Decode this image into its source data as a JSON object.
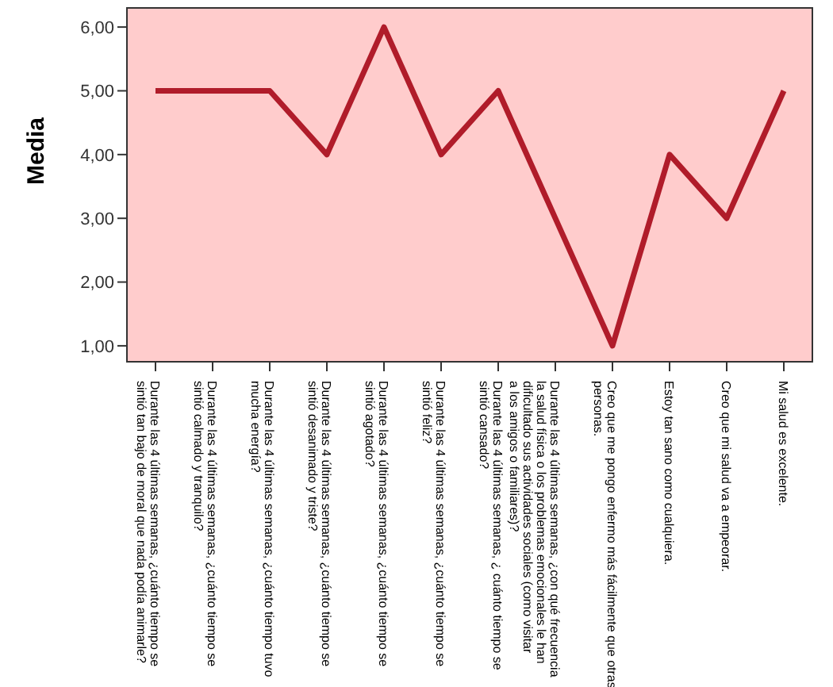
{
  "chart_data": {
    "type": "line",
    "ylabel": "Media",
    "categories": [
      "Durante las 4 últimas semanas, ¿cuánto tiempo se sintió tan bajo de moral que nada podía animarle?",
      "Durante las 4 últimas semanas, ¿cuánto tiempo se sintió calmado y tranquilo?",
      "Durante las 4 últimas semanas, ¿cuánto tiempo tuvo mucha energía?",
      "Durante las 4 últimas semanas, ¿cuánto tiempo se sintió desanimado y triste?",
      "Durante las 4 últimas semanas, ¿cuánto tiempo se sintió agotado?",
      "Durante las 4 últimas semanas, ¿cuánto tiempo se sintió feliz?",
      "Durante las 4 últimas semanas, ¿ cuánto tiempo se sintió cansado?",
      "Durante las 4 últimas semanas, ¿con qué frecuencia la salud física o los problemas emocionales le han dificultado sus actividades sociales (como visitar a los amigos o familiares)?",
      "Creo que me pongo enfermo más fácilmente que otras personas.",
      "Estoy tan sano como cualquiera.",
      "Creo que mi salud va a empeorar.",
      "Mi salud es excelente."
    ],
    "series": [
      {
        "color": "#b01c2a",
        "values": [
          5,
          5,
          5,
          4,
          6,
          4,
          5,
          3,
          1,
          4,
          3,
          5
        ]
      }
    ],
    "ylim": [
      0.75,
      6.3
    ],
    "yticks": [
      {
        "value": 1,
        "label": "1,00"
      },
      {
        "value": 2,
        "label": "2,00"
      },
      {
        "value": 3,
        "label": "3,00"
      },
      {
        "value": 4,
        "label": "4,00"
      },
      {
        "value": 5,
        "label": "5,00"
      },
      {
        "value": 6,
        "label": "6,00"
      }
    ],
    "legend": false,
    "marker": "none",
    "line_style": "solid"
  }
}
